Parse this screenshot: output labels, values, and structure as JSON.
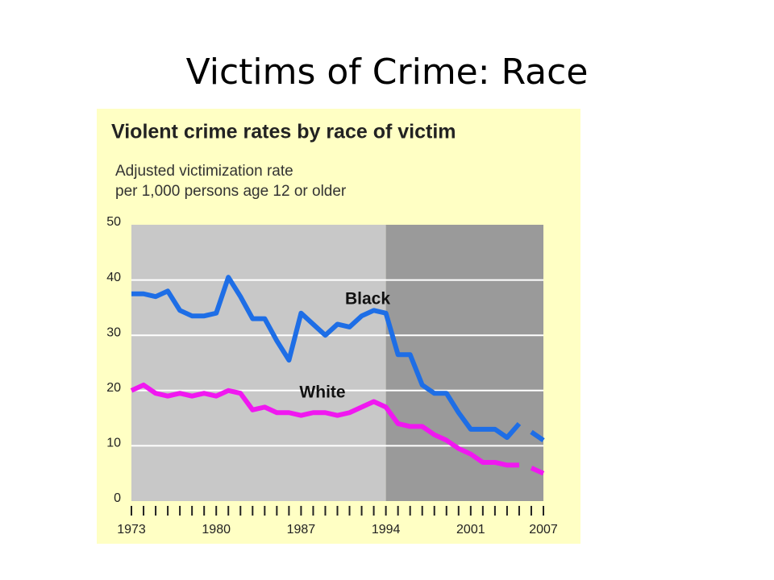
{
  "slide_title": "Victims of Crime: Race",
  "chart_data": {
    "type": "line",
    "title": "Violent crime rates by race of victim",
    "subtitle": [
      "Adjusted victimization rate",
      "per 1,000 persons age 12 or older"
    ],
    "x": [
      1973,
      1974,
      1975,
      1976,
      1977,
      1978,
      1979,
      1980,
      1981,
      1982,
      1983,
      1984,
      1985,
      1986,
      1987,
      1988,
      1989,
      1990,
      1991,
      1992,
      1993,
      1994,
      1995,
      1996,
      1997,
      1998,
      1999,
      2000,
      2001,
      2002,
      2003,
      2004,
      2005,
      2006,
      2007
    ],
    "series": [
      {
        "name": "Black",
        "color": "#1e6ee6",
        "values": [
          37.5,
          37.5,
          37,
          38,
          34.5,
          33.5,
          33.5,
          34,
          40.5,
          37,
          33,
          33,
          29,
          25.5,
          34,
          32,
          30,
          32,
          31.5,
          33.5,
          34.5,
          34,
          26.5,
          26.5,
          21,
          19.5,
          19.5,
          16,
          13,
          13,
          13,
          11.5,
          14,
          12.5,
          11
        ]
      },
      {
        "name": "White",
        "color": "#f018f0",
        "values": [
          20,
          21,
          19.5,
          19,
          19.5,
          19,
          19.5,
          19,
          20,
          19.5,
          16.5,
          17,
          16,
          16,
          15.5,
          16,
          16,
          15.5,
          16,
          17,
          18,
          17,
          14,
          13.5,
          13.5,
          12,
          11,
          9.5,
          8.5,
          7,
          7,
          6.5,
          6.5,
          6,
          5
        ]
      }
    ],
    "xlim": [
      1973,
      2007
    ],
    "xticks": [
      1973,
      1980,
      1987,
      1994,
      2001,
      2007
    ],
    "ylim": [
      0,
      50
    ],
    "yticks": [
      0,
      10,
      20,
      30,
      40,
      50
    ],
    "grid": true,
    "shaded_from": 1994,
    "line_break_before": 2006
  }
}
